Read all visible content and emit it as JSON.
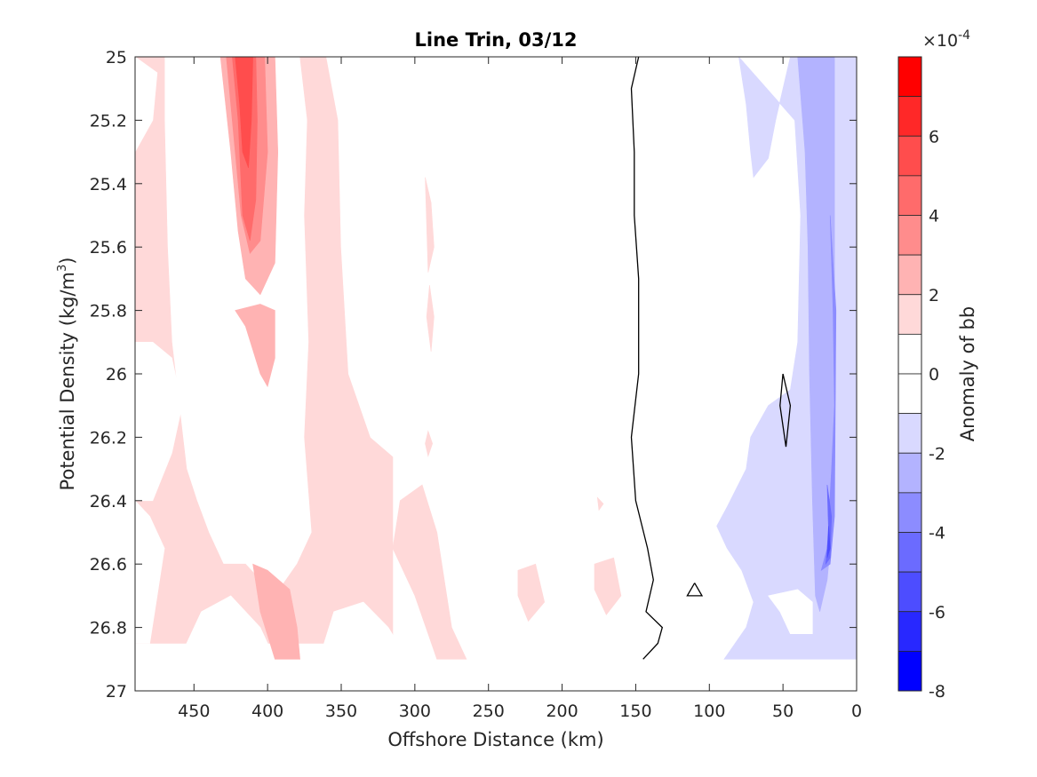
{
  "chart_data": {
    "type": "heatmap",
    "subtype": "filled-contour",
    "title": "Line Trin, 03/12",
    "xlabel": "Offshore Distance (km)",
    "ylabel_main": "Potential Density (kg/m",
    "ylabel_sup": "3",
    "ylabel_close": ")",
    "xlim": [
      0,
      490
    ],
    "x_reversed": true,
    "ylim": [
      25,
      27
    ],
    "y_reversed": true,
    "xticks": [
      450,
      400,
      350,
      300,
      250,
      200,
      150,
      100,
      50,
      0
    ],
    "xtick_labels": [
      "450",
      "400",
      "350",
      "300",
      "250",
      "200",
      "150",
      "100",
      "50",
      "0"
    ],
    "yticks": [
      25,
      25.2,
      25.4,
      25.6,
      25.8,
      26,
      26.2,
      26.4,
      26.6,
      26.8,
      27
    ],
    "ytick_labels": [
      "25",
      "25.2",
      "25.4",
      "25.6",
      "25.8",
      "26",
      "26.2",
      "26.4",
      "26.6",
      "26.8",
      "27"
    ],
    "data_bottom": 26.9,
    "colorbar": {
      "label": "Anomaly of bb",
      "exponent_prefix": "×10",
      "exponent": "-4",
      "range": [
        -8,
        8
      ],
      "ticks": [
        6,
        4,
        2,
        0,
        -2,
        -4,
        -6,
        -8
      ],
      "tick_labels": [
        "6",
        "4",
        "2",
        "0",
        "-2",
        "-4",
        "-6",
        "-8"
      ],
      "levels": [
        {
          "from": 7,
          "to": 8,
          "color": "#ff0000"
        },
        {
          "from": 6,
          "to": 7,
          "color": "#ff2828"
        },
        {
          "from": 5,
          "to": 6,
          "color": "#ff4d4d"
        },
        {
          "from": 4,
          "to": 5,
          "color": "#ff6b6b"
        },
        {
          "from": 3,
          "to": 4,
          "color": "#ff8c8c"
        },
        {
          "from": 2,
          "to": 3,
          "color": "#ffb3b3"
        },
        {
          "from": 1,
          "to": 2,
          "color": "#ffd9d9"
        },
        {
          "from": 0,
          "to": 1,
          "color": "#ffffff"
        },
        {
          "from": -1,
          "to": 0,
          "color": "#ffffff"
        },
        {
          "from": -2,
          "to": -1,
          "color": "#d9d9ff"
        },
        {
          "from": -3,
          "to": -2,
          "color": "#b3b3ff"
        },
        {
          "from": -4,
          "to": -3,
          "color": "#8c8cff"
        },
        {
          "from": -5,
          "to": -4,
          "color": "#6b6bff"
        },
        {
          "from": -6,
          "to": -5,
          "color": "#4d4dff"
        },
        {
          "from": -7,
          "to": -6,
          "color": "#2828ff"
        },
        {
          "from": -8,
          "to": -7,
          "color": "#0000ff"
        }
      ]
    },
    "regions": [
      {
        "name": "positive-band-west",
        "level": 1,
        "color": "#ffd9d9",
        "points": [
          [
            490,
            25
          ],
          [
            470,
            25
          ],
          [
            470,
            25.2
          ],
          [
            468,
            25.6
          ],
          [
            465,
            25.9
          ],
          [
            460,
            26.1
          ],
          [
            455,
            26.3
          ],
          [
            448,
            26.4
          ],
          [
            440,
            26.5
          ],
          [
            430,
            26.6
          ],
          [
            415,
            26.6
          ],
          [
            395,
            26.7
          ],
          [
            380,
            26.6
          ],
          [
            370,
            26.5
          ],
          [
            375,
            26.2
          ],
          [
            372,
            25.9
          ],
          [
            375,
            25.5
          ],
          [
            373,
            25.2
          ],
          [
            378,
            25
          ],
          [
            315,
            25
          ],
          [
            315,
            26.85
          ],
          [
            490,
            26.85
          ]
        ]
      },
      {
        "name": "white-hole-southwest",
        "level": 0,
        "color": "#ffffff",
        "points": [
          [
            490,
            26.85
          ],
          [
            480,
            26.85
          ],
          [
            475,
            26.7
          ],
          [
            470,
            26.55
          ],
          [
            480,
            26.45
          ],
          [
            490,
            26.4
          ]
        ]
      },
      {
        "name": "white-hole-west-mid",
        "level": 0,
        "color": "#ffffff",
        "points": [
          [
            478,
            26.4
          ],
          [
            465,
            26.25
          ],
          [
            458,
            26.1
          ],
          [
            465,
            25.95
          ],
          [
            478,
            25.9
          ],
          [
            490,
            25.9
          ],
          [
            490,
            26.4
          ]
        ]
      },
      {
        "name": "white-hole-west-upper",
        "level": 0,
        "color": "#ffffff",
        "points": [
          [
            490,
            25.3
          ],
          [
            478,
            25.2
          ],
          [
            475,
            25.05
          ],
          [
            490,
            25
          ]
        ]
      },
      {
        "name": "white-central",
        "level": 0,
        "color": "#ffffff",
        "points": [
          [
            360,
            25
          ],
          [
            165,
            25
          ],
          [
            165,
            26.9
          ],
          [
            260,
            26.9
          ],
          [
            275,
            26.7
          ],
          [
            290,
            26.5
          ],
          [
            305,
            26.3
          ],
          [
            330,
            26.2
          ],
          [
            345,
            26.0
          ],
          [
            350,
            25.6
          ],
          [
            352,
            25.2
          ]
        ]
      },
      {
        "name": "white-pocket-south",
        "level": 0,
        "color": "#ffffff",
        "points": [
          [
            460,
            26.9
          ],
          [
            445,
            26.75
          ],
          [
            425,
            26.7
          ],
          [
            405,
            26.8
          ],
          [
            395,
            26.9
          ]
        ]
      },
      {
        "name": "white-pocket-south-2",
        "level": 0,
        "color": "#ffffff",
        "points": [
          [
            365,
            26.9
          ],
          [
            355,
            26.75
          ],
          [
            335,
            26.72
          ],
          [
            318,
            26.8
          ],
          [
            305,
            26.9
          ]
        ]
      },
      {
        "name": "positive-strip-300a",
        "level": 1,
        "color": "#ffd9d9",
        "points": [
          [
            293,
            25.38
          ],
          [
            289,
            25.46
          ],
          [
            287,
            25.6
          ],
          [
            291,
            25.68
          ]
        ]
      },
      {
        "name": "positive-strip-300b",
        "level": 1,
        "color": "#ffd9d9",
        "points": [
          [
            290,
            25.72
          ],
          [
            287,
            25.82
          ],
          [
            289,
            25.93
          ],
          [
            292,
            25.82
          ]
        ]
      },
      {
        "name": "positive-strip-300c",
        "level": 1,
        "color": "#ffd9d9",
        "points": [
          [
            291,
            26.18
          ],
          [
            288,
            26.22
          ],
          [
            291,
            26.26
          ],
          [
            293,
            26.22
          ]
        ]
      },
      {
        "name": "positive-patch-290",
        "level": 1,
        "color": "#ffd9d9",
        "points": [
          [
            310,
            26.4
          ],
          [
            295,
            26.35
          ],
          [
            285,
            26.5
          ],
          [
            280,
            26.65
          ],
          [
            275,
            26.8
          ],
          [
            265,
            26.9
          ],
          [
            285,
            26.9
          ],
          [
            300,
            26.7
          ],
          [
            315,
            26.55
          ]
        ]
      },
      {
        "name": "positive-patch-215",
        "level": 1,
        "color": "#ffd9d9",
        "points": [
          [
            230,
            26.62
          ],
          [
            218,
            26.6
          ],
          [
            212,
            26.72
          ],
          [
            223,
            26.78
          ],
          [
            230,
            26.7
          ]
        ]
      },
      {
        "name": "positive-patch-170",
        "level": 1,
        "color": "#ffd9d9",
        "points": [
          [
            178,
            26.6
          ],
          [
            165,
            26.58
          ],
          [
            160,
            26.7
          ],
          [
            170,
            26.76
          ],
          [
            178,
            26.68
          ]
        ]
      },
      {
        "name": "positive-dot-175",
        "level": 1,
        "color": "#ffd9d9",
        "points": [
          [
            176,
            26.39
          ],
          [
            172,
            26.41
          ],
          [
            175,
            26.43
          ]
        ]
      },
      {
        "name": "positive-core-level2",
        "level": 2,
        "color": "#ffb3b3",
        "points": [
          [
            432,
            25
          ],
          [
            425,
            25.3
          ],
          [
            420,
            25.55
          ],
          [
            415,
            25.7
          ],
          [
            405,
            25.75
          ],
          [
            395,
            25.65
          ],
          [
            393,
            25.3
          ],
          [
            395,
            25.0
          ]
        ]
      },
      {
        "name": "positive-mid-level2",
        "level": 2,
        "color": "#ffb3b3",
        "points": [
          [
            422,
            25.8
          ],
          [
            415,
            25.85
          ],
          [
            405,
            26.0
          ],
          [
            400,
            26.04
          ],
          [
            395,
            25.95
          ],
          [
            395,
            25.8
          ],
          [
            405,
            25.78
          ]
        ]
      },
      {
        "name": "positive-south-level2",
        "level": 2,
        "color": "#ffb3b3",
        "points": [
          [
            410,
            26.6
          ],
          [
            400,
            26.62
          ],
          [
            385,
            26.68
          ],
          [
            380,
            26.8
          ],
          [
            378,
            26.9
          ],
          [
            395,
            26.9
          ],
          [
            405,
            26.75
          ]
        ]
      },
      {
        "name": "positive-core-level3",
        "level": 3,
        "color": "#ff8c8c",
        "points": [
          [
            428,
            25
          ],
          [
            422,
            25.3
          ],
          [
            418,
            25.5
          ],
          [
            412,
            25.62
          ],
          [
            405,
            25.58
          ],
          [
            400,
            25.3
          ],
          [
            402,
            25.0
          ]
        ]
      },
      {
        "name": "positive-core-level4",
        "level": 4,
        "color": "#ff6b6b",
        "points": [
          [
            424,
            25
          ],
          [
            420,
            25.2
          ],
          [
            417,
            25.5
          ],
          [
            412,
            25.58
          ],
          [
            408,
            25.45
          ],
          [
            407,
            25.2
          ],
          [
            408,
            25.0
          ]
        ]
      },
      {
        "name": "positive-core-level5",
        "level": 5,
        "color": "#ff4d4d",
        "points": [
          [
            422,
            25
          ],
          [
            419,
            25.15
          ],
          [
            417,
            25.3
          ],
          [
            413,
            25.35
          ],
          [
            411,
            25.2
          ],
          [
            410,
            25.0
          ]
        ]
      },
      {
        "name": "negative-east-level1",
        "level": -1,
        "color": "#d9d9ff",
        "points": [
          [
            80,
            25
          ],
          [
            75,
            25.15
          ],
          [
            72,
            25.3
          ],
          [
            70,
            25.38
          ],
          [
            60,
            25.32
          ],
          [
            55,
            25.2
          ],
          [
            50,
            25.1
          ],
          [
            45,
            25
          ],
          [
            0,
            25
          ],
          [
            0,
            26.9
          ],
          [
            90,
            26.9
          ],
          [
            75,
            26.8
          ],
          [
            70,
            26.72
          ],
          [
            78,
            26.62
          ],
          [
            88,
            26.55
          ],
          [
            95,
            26.48
          ],
          [
            88,
            26.42
          ],
          [
            75,
            26.3
          ],
          [
            72,
            26.2
          ],
          [
            60,
            26.1
          ],
          [
            45,
            26.05
          ],
          [
            40,
            25.9
          ],
          [
            38,
            25.5
          ],
          [
            42,
            25.2
          ]
        ]
      },
      {
        "name": "negative-east-south-gap",
        "level": 0,
        "color": "#ffffff",
        "points": [
          [
            60,
            26.7
          ],
          [
            52,
            26.75
          ],
          [
            45,
            26.82
          ],
          [
            30,
            26.82
          ],
          [
            30,
            26.72
          ],
          [
            40,
            26.68
          ]
        ]
      },
      {
        "name": "negative-east-level2",
        "level": -2,
        "color": "#b3b3ff",
        "points": [
          [
            40,
            25
          ],
          [
            35,
            25.3
          ],
          [
            33,
            25.6
          ],
          [
            32,
            26.0
          ],
          [
            30,
            26.4
          ],
          [
            28,
            26.7
          ],
          [
            25,
            26.75
          ],
          [
            20,
            26.65
          ],
          [
            15,
            26.4
          ],
          [
            15,
            25
          ],
          [
            20,
            25
          ]
        ]
      },
      {
        "name": "negative-east-level3",
        "level": -3,
        "color": "#8c8cff",
        "points": [
          [
            18,
            25.5
          ],
          [
            16,
            25.8
          ],
          [
            15,
            26.1
          ],
          [
            17,
            26.3
          ],
          [
            20,
            26.55
          ],
          [
            24,
            26.62
          ],
          [
            18,
            26.6
          ],
          [
            15,
            26.45
          ],
          [
            14,
            25.8
          ]
        ]
      },
      {
        "name": "negative-east-level4",
        "level": -4,
        "color": "#6b6bff",
        "points": [
          [
            20,
            26.35
          ],
          [
            19,
            26.5
          ],
          [
            21,
            26.6
          ],
          [
            18,
            26.58
          ],
          [
            17,
            26.45
          ]
        ]
      },
      {
        "name": "negative-east-level5",
        "level": -5,
        "color": "#4d4dff",
        "points": [
          [
            19,
            26.48
          ],
          [
            18,
            26.55
          ],
          [
            20,
            26.58
          ]
        ]
      }
    ],
    "contour_lines": [
      {
        "name": "zero-contour-main",
        "points": [
          [
            148,
            25
          ],
          [
            153,
            25.1
          ],
          [
            151,
            25.3
          ],
          [
            151,
            25.5
          ],
          [
            148,
            25.7
          ],
          [
            148,
            26
          ],
          [
            153,
            26.2
          ],
          [
            150,
            26.4
          ],
          [
            142,
            26.55
          ],
          [
            138,
            26.65
          ],
          [
            143,
            26.75
          ],
          [
            132,
            26.8
          ],
          [
            135,
            26.85
          ],
          [
            145,
            26.9
          ]
        ]
      },
      {
        "name": "zero-contour-loop-110",
        "points": [
          [
            110,
            26.66
          ],
          [
            105,
            26.7
          ],
          [
            115,
            26.7
          ],
          [
            110,
            26.66
          ]
        ]
      },
      {
        "name": "zero-contour-loop-50",
        "points": [
          [
            50,
            26.0
          ],
          [
            45,
            26.1
          ],
          [
            48,
            26.23
          ],
          [
            52,
            26.1
          ],
          [
            50,
            26.0
          ]
        ]
      }
    ]
  }
}
